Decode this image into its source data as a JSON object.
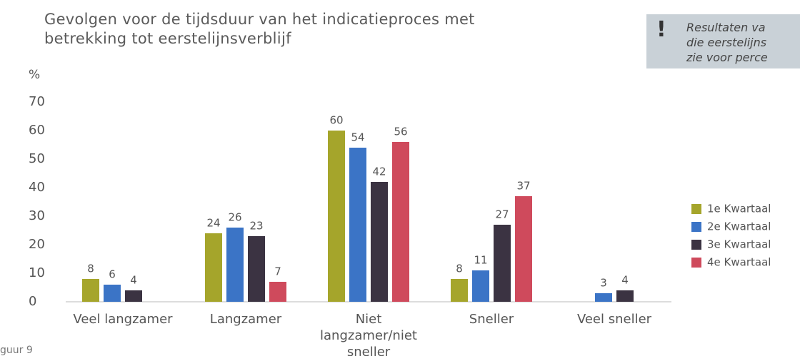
{
  "chart_data": {
    "type": "bar",
    "title": "Gevolgen voor de tijdsduur van het indicatieproces met betrekking tot eerstelijnsverblijf",
    "y_label": "%",
    "categories": [
      "Veel langzamer",
      "Langzamer",
      "Niet langzamer/niet sneller",
      "Sneller",
      "Veel sneller"
    ],
    "series": [
      {
        "name": "1e Kwartaal",
        "color": "#a5a52b",
        "values": [
          8,
          24,
          60,
          8,
          null
        ]
      },
      {
        "name": "2e Kwartaal",
        "color": "#3b74c6",
        "values": [
          6,
          26,
          54,
          11,
          3
        ]
      },
      {
        "name": "3e Kwartaal",
        "color": "#3b3342",
        "values": [
          4,
          23,
          42,
          27,
          4
        ]
      },
      {
        "name": "4e Kwartaal",
        "color": "#cf4a5c",
        "values": [
          null,
          7,
          56,
          37,
          null
        ]
      }
    ],
    "ylim": [
      0,
      70
    ],
    "yticks": [
      0,
      10,
      20,
      30,
      40,
      50,
      60,
      70
    ],
    "grid": false,
    "legend": "right",
    "note": [
      "Resultaten va",
      "die eerstelijns",
      "zie voor perce"
    ],
    "figure_label": "guur 9"
  }
}
